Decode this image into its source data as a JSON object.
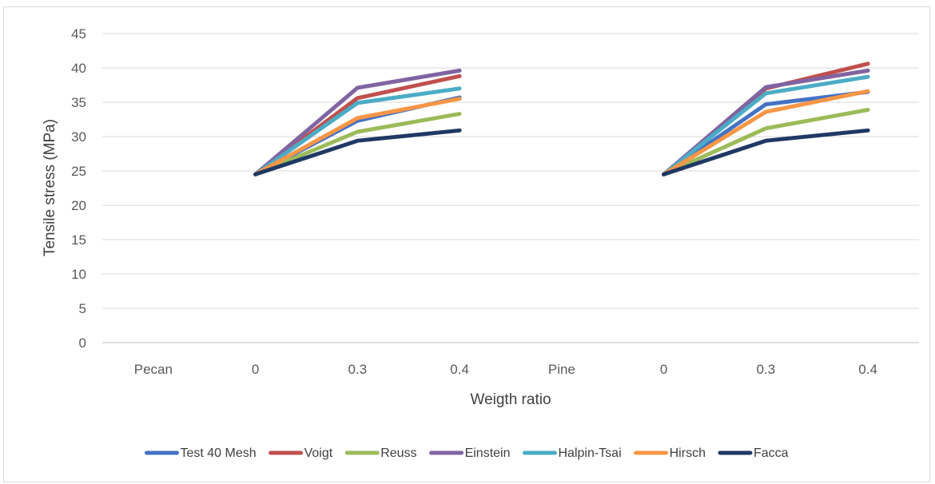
{
  "chart_data": {
    "type": "line",
    "title": "",
    "xlabel": "Weigth ratio",
    "ylabel": "Tensile stress (MPa)",
    "categories": [
      "Pecan",
      "0",
      "0.3",
      "0.4",
      "Pine",
      "0",
      "0.3",
      "0.4"
    ],
    "ylim": [
      0,
      45
    ],
    "yticks": [
      0,
      5,
      10,
      15,
      20,
      25,
      30,
      35,
      40,
      45
    ],
    "grid": "horizontal",
    "legend_position": "bottom",
    "series": [
      {
        "name": "Test 40 Mesh",
        "color": "#4472c4",
        "values": [
          null,
          24.5,
          32.3,
          35.7,
          null,
          24.5,
          34.7,
          36.5
        ]
      },
      {
        "name": "Voigt",
        "color": "#c0504d",
        "values": [
          null,
          24.5,
          35.6,
          38.8,
          null,
          24.5,
          37.0,
          40.6
        ]
      },
      {
        "name": "Reuss",
        "color": "#9bbb59",
        "values": [
          null,
          24.5,
          30.7,
          33.3,
          null,
          24.5,
          31.2,
          33.9
        ]
      },
      {
        "name": "Einstein",
        "color": "#8064a2",
        "values": [
          null,
          24.5,
          37.1,
          39.6,
          null,
          24.5,
          37.2,
          39.6
        ]
      },
      {
        "name": "Halpin-Tsai",
        "color": "#4bacc6",
        "values": [
          null,
          24.5,
          34.9,
          37.0,
          null,
          24.5,
          36.3,
          38.7
        ]
      },
      {
        "name": "Hirsch",
        "color": "#f79646",
        "values": [
          null,
          24.5,
          32.7,
          35.5,
          null,
          24.5,
          33.6,
          36.6
        ]
      },
      {
        "name": "Facca",
        "color": "#1f3864",
        "values": [
          null,
          24.5,
          29.4,
          30.9,
          null,
          24.5,
          29.4,
          30.9
        ]
      }
    ]
  }
}
